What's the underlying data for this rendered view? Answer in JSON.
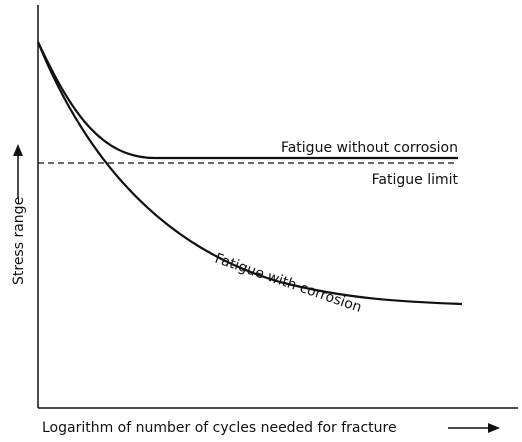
{
  "curves": {
    "without_corrosion": "Fatigue without corrosion",
    "fatigue_limit": "Fatigue limit",
    "with_corrosion": "Fatigue with corrosion"
  },
  "axes": {
    "y_label": "Stress range",
    "x_label": "Logarithm of number of cycles needed for fracture"
  }
}
